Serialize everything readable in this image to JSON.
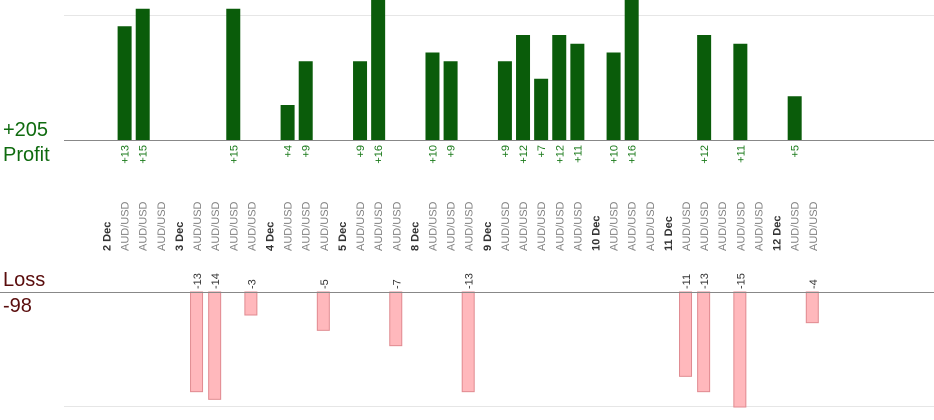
{
  "summary": {
    "profit_total": "+205",
    "profit_label": "Profit",
    "loss_label": "Loss",
    "loss_total": "-98"
  },
  "colors": {
    "profit_bar": "#0a5c0a",
    "profit_text": "#1a7a1a",
    "loss_fill": "#ffb8bc",
    "loss_stroke": "#e08a90",
    "loss_text": "#333333",
    "date_text": "#333333",
    "pair_text": "#808080",
    "grid": "#e6e6e6",
    "axis": "#888888"
  },
  "chart_data": {
    "type": "bar",
    "categories": [
      "2 Dec",
      "AUD/USD",
      "AUD/USD",
      "AUD/USD",
      "3 Dec",
      "AUD/USD",
      "AUD/USD",
      "AUD/USD",
      "AUD/USD",
      "4 Dec",
      "AUD/USD",
      "AUD/USD",
      "AUD/USD",
      "5 Dec",
      "AUD/USD",
      "AUD/USD",
      "AUD/USD",
      "8 Dec",
      "AUD/USD",
      "AUD/USD",
      "AUD/USD",
      "9 Dec",
      "AUD/USD",
      "AUD/USD",
      "AUD/USD",
      "AUD/USD",
      "AUD/USD",
      "10 Dec",
      "AUD/USD",
      "AUD/USD",
      "AUD/USD",
      "11 Dec",
      "AUD/USD",
      "AUD/USD",
      "AUD/USD",
      "AUD/USD",
      "AUD/USD",
      "12 Dec",
      "AUD/USD",
      "AUD/USD"
    ],
    "date_categories": [
      0,
      4,
      9,
      13,
      17,
      21,
      27,
      31,
      37
    ],
    "series": [
      {
        "name": "Profit",
        "values": [
          null,
          13,
          15,
          null,
          null,
          null,
          null,
          15,
          null,
          null,
          4,
          9,
          null,
          null,
          9,
          16,
          null,
          null,
          10,
          9,
          null,
          null,
          9,
          12,
          7,
          12,
          11,
          null,
          10,
          16,
          null,
          null,
          null,
          12,
          null,
          11,
          null,
          null,
          5,
          null
        ],
        "labels": [
          null,
          "+13",
          "+15",
          null,
          null,
          null,
          null,
          "+15",
          null,
          null,
          "+4",
          "+9",
          null,
          null,
          "+9",
          "+16",
          null,
          null,
          "+10",
          "+9",
          null,
          null,
          "+9",
          "+12",
          "+7",
          "+12",
          "+11",
          null,
          "+10",
          "+16",
          null,
          null,
          null,
          "+12",
          null,
          "+11",
          null,
          null,
          "+5",
          null
        ]
      },
      {
        "name": "Loss",
        "values": [
          null,
          null,
          null,
          null,
          null,
          -13,
          -14,
          null,
          -3,
          null,
          null,
          null,
          -5,
          null,
          null,
          null,
          -7,
          null,
          null,
          null,
          -13,
          null,
          null,
          null,
          null,
          null,
          null,
          null,
          null,
          null,
          null,
          null,
          -11,
          -13,
          null,
          -15,
          null,
          null,
          null,
          -4
        ],
        "labels": [
          null,
          null,
          null,
          null,
          null,
          "-13",
          "-14",
          null,
          "-3",
          null,
          null,
          null,
          "-5",
          null,
          null,
          null,
          "-7",
          null,
          null,
          null,
          "-13",
          null,
          null,
          null,
          null,
          null,
          null,
          null,
          null,
          null,
          null,
          null,
          "-11",
          "-13",
          null,
          "-15",
          null,
          null,
          null,
          "-4"
        ]
      }
    ],
    "ylim_profit": [
      0,
      16
    ],
    "ylim_loss": [
      -15,
      0
    ],
    "grid": true
  }
}
